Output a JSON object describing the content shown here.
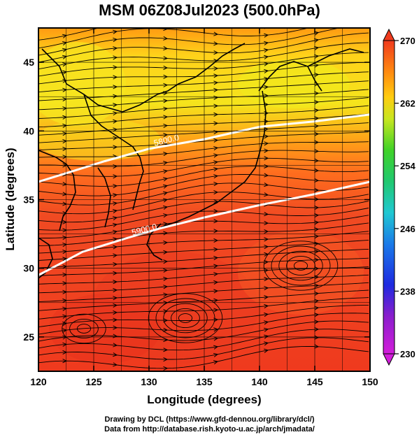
{
  "chart_data": {
    "type": "heatmap",
    "title": "MSM 06Z08Jul2023 (500.0hPa)",
    "xlabel": "Longitude (degrees)",
    "ylabel": "Latitude  (degrees)",
    "xlim": [
      120,
      150
    ],
    "ylim": [
      22.5,
      47.5
    ],
    "x_ticks": [
      "120",
      "125",
      "130",
      "135",
      "140",
      "145",
      "150"
    ],
    "y_ticks": [
      "25",
      "30",
      "35",
      "40",
      "45"
    ],
    "colorbar": {
      "min": 230,
      "max": 270,
      "ticks": [
        "270",
        "262",
        "254",
        "246",
        "238",
        "230"
      ]
    },
    "contours": [
      {
        "label": "5800.0",
        "points": [
          [
            120,
            36.3
          ],
          [
            126,
            37.8
          ],
          [
            130,
            38.7
          ],
          [
            135,
            39.4
          ],
          [
            140,
            40.3
          ],
          [
            145,
            40.7
          ],
          [
            150,
            41.2
          ]
        ]
      },
      {
        "label": "5900.0",
        "points": [
          [
            120,
            29.5
          ],
          [
            124,
            31.2
          ],
          [
            128,
            32.2
          ],
          [
            131,
            32.9
          ],
          [
            135,
            33.7
          ],
          [
            140,
            34.6
          ],
          [
            145,
            35.4
          ],
          [
            150,
            36.3
          ]
        ]
      }
    ],
    "grid": true
  },
  "credits": {
    "line1": "Drawing by DCL (https://www.gfd-dennou.org/library/dcl/)",
    "line2": "Data from http://database.rish.kyoto-u.ac.jp/arch/jmadata/"
  },
  "colors": {
    "warm": "#f03b1e",
    "mid": "#ff8a10",
    "cool": "#f2e21b",
    "contour": "#ffffff",
    "streamline": "#000000"
  }
}
